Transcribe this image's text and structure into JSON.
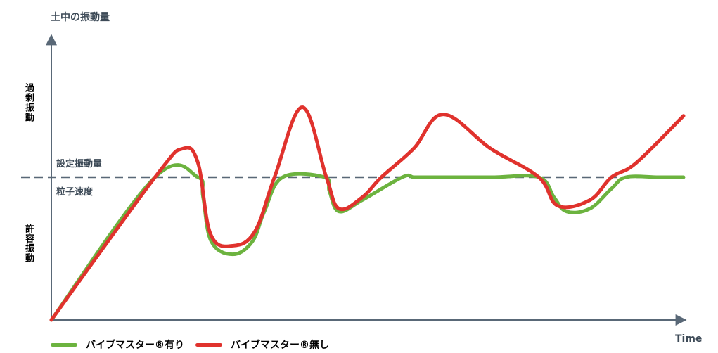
{
  "chart_data": {
    "type": "line",
    "ylabel": "土中の振動量",
    "xlabel": "Time",
    "threshold": {
      "value": 1.0,
      "label_above": "設定振動量",
      "label_below": "粒子速度"
    },
    "zones": {
      "excess": "過剰振動",
      "allowable": "許容振動"
    },
    "ylim": [
      0,
      2
    ],
    "xlim": [
      0,
      100
    ],
    "grid": false,
    "legend_position": "bottom-left",
    "series": [
      {
        "name": "バイブマスター®有り",
        "color": "#6cb33f",
        "x": [
          0,
          16.4,
          23.2,
          24,
          25.3,
          28.7,
          31.8,
          33.7,
          36.6,
          43.2,
          44,
          45.5,
          49.2,
          55.5,
          57.3,
          59,
          69.5,
          77.1,
          79.5,
          81.5,
          85.2,
          88.6,
          90.9,
          96,
          100
        ],
        "y": [
          0,
          1.0,
          1.0,
          0.86,
          0.55,
          0.46,
          0.55,
          0.76,
          1.0,
          1.0,
          0.9,
          0.76,
          0.84,
          1.0,
          1.0,
          1.0,
          1.0,
          1.0,
          0.86,
          0.76,
          0.78,
          0.92,
          1.0,
          1.0,
          1.0
        ]
      },
      {
        "name": "バイブマスター®無し",
        "color": "#e0322d",
        "x": [
          0,
          16.4,
          20.8,
          23.2,
          25.2,
          28.7,
          32.2,
          35.3,
          39.7,
          43.5,
          45.5,
          49.2,
          52.2,
          57.3,
          62,
          69.5,
          77.1,
          80.1,
          85.2,
          88.6,
          92.5,
          100
        ],
        "y": [
          0,
          1.0,
          1.2,
          1.1,
          0.6,
          0.52,
          0.62,
          1.0,
          1.49,
          1.0,
          0.78,
          0.86,
          1.0,
          1.2,
          1.44,
          1.2,
          1.0,
          0.8,
          0.84,
          1.0,
          1.1,
          1.43
        ]
      }
    ]
  }
}
